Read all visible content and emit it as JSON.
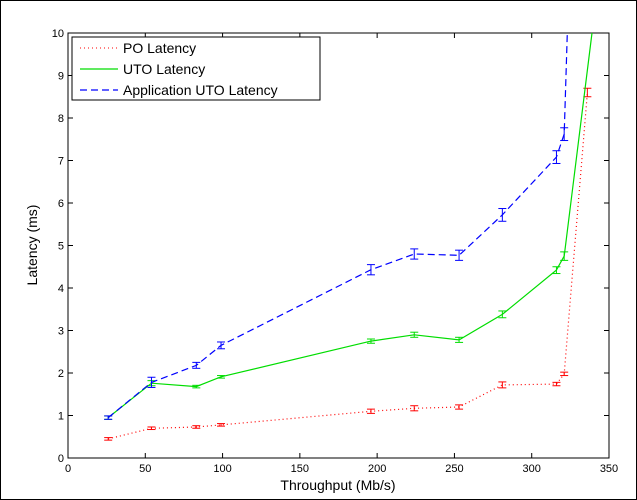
{
  "chart_data": {
    "type": "line",
    "title": "",
    "xlabel": "Throughput (Mb/s)",
    "ylabel": "Latency (ms)",
    "xlim": [
      0,
      350
    ],
    "ylim": [
      0,
      10
    ],
    "xticks": [
      "0",
      "50",
      "100",
      "150",
      "200",
      "250",
      "300",
      "350"
    ],
    "yticks": [
      "0",
      "1",
      "2",
      "3",
      "4",
      "5",
      "6",
      "7",
      "8",
      "9",
      "10"
    ],
    "grid": false,
    "legend_position": "top-left",
    "error_bars": true,
    "series": [
      {
        "name": "PO Latency",
        "color": "#ff0000",
        "line_style": "dotted",
        "x": [
          26,
          54,
          83,
          99,
          196,
          224,
          253,
          281,
          316,
          321,
          336
        ],
        "y": [
          0.45,
          0.7,
          0.73,
          0.78,
          1.1,
          1.17,
          1.2,
          1.72,
          1.74,
          1.98,
          8.6
        ],
        "error": [
          0.03,
          0.03,
          0.03,
          0.03,
          0.05,
          0.06,
          0.05,
          0.07,
          0.04,
          0.04,
          0.1
        ]
      },
      {
        "name": "UTO Latency",
        "color": "#00dd00",
        "line_style": "solid",
        "x": [
          26,
          54,
          83,
          99,
          196,
          224,
          253,
          281,
          316,
          321,
          339
        ],
        "y": [
          0.95,
          1.76,
          1.68,
          1.91,
          2.75,
          2.9,
          2.78,
          3.38,
          4.42,
          4.75,
          10.0
        ],
        "error": [
          0.04,
          0.06,
          0.03,
          0.03,
          0.05,
          0.06,
          0.06,
          0.08,
          0.08,
          0.1,
          0.0
        ]
      },
      {
        "name": "Application UTO Latency",
        "color": "#0000ff",
        "line_style": "dashed",
        "x": [
          26,
          54,
          83,
          99,
          196,
          224,
          253,
          281,
          316,
          321,
          323
        ],
        "y": [
          0.95,
          1.78,
          2.18,
          2.65,
          4.43,
          4.8,
          4.77,
          5.72,
          7.08,
          7.62,
          10.0
        ],
        "error": [
          0.04,
          0.12,
          0.07,
          0.08,
          0.12,
          0.12,
          0.12,
          0.15,
          0.15,
          0.15,
          0.0
        ]
      }
    ]
  }
}
